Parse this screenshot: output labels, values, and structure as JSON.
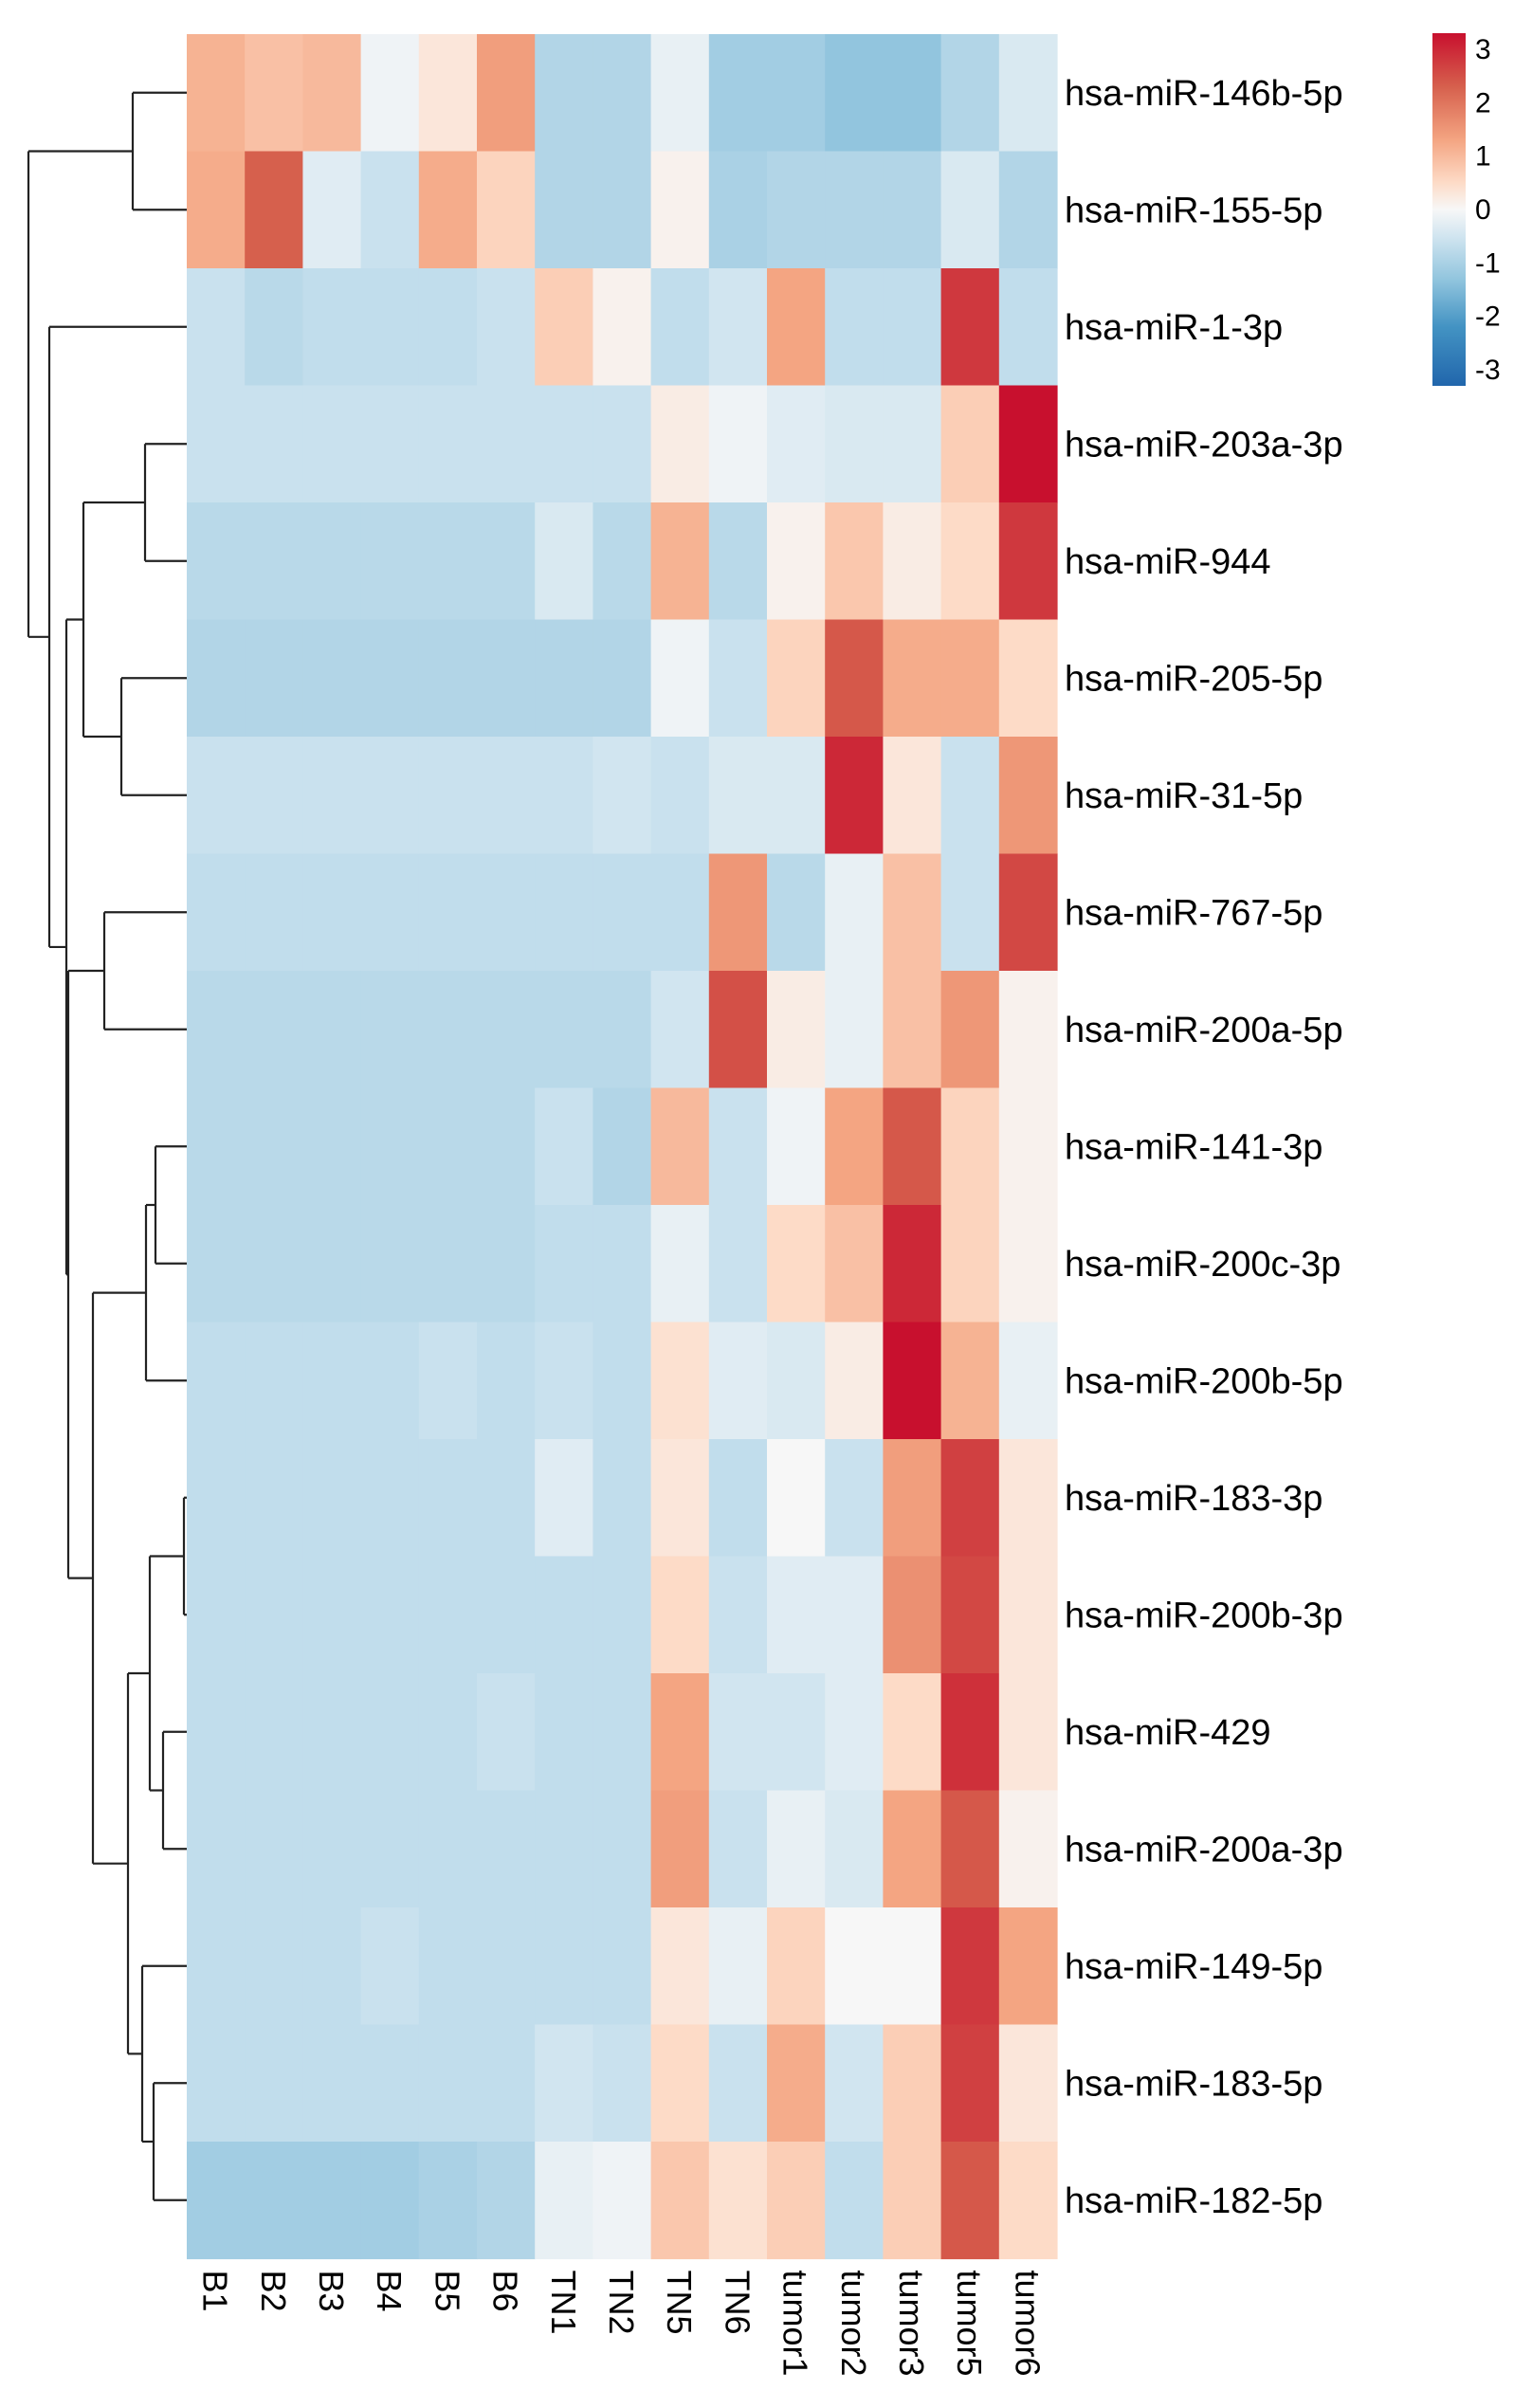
{
  "chart_data": {
    "type": "heatmap",
    "title": "",
    "columns": [
      "B1",
      "B2",
      "B3",
      "B4",
      "B5",
      "B6",
      "TN1",
      "TN2",
      "TN5",
      "TN6",
      "tumor1",
      "tumor2",
      "tumor3",
      "tumor5",
      "tumor6"
    ],
    "rows": [
      "hsa-miR-146b-5p",
      "hsa-miR-155-5p",
      "hsa-miR-1-3p",
      "hsa-miR-203a-3p",
      "hsa-miR-944",
      "hsa-miR-205-5p",
      "hsa-miR-31-5p",
      "hsa-miR-767-5p",
      "hsa-miR-200a-5p",
      "hsa-miR-141-3p",
      "hsa-miR-200c-3p",
      "hsa-miR-200b-5p",
      "hsa-miR-183-3p",
      "hsa-miR-200b-3p",
      "hsa-miR-429",
      "hsa-miR-200a-3p",
      "hsa-miR-149-5p",
      "hsa-miR-183-5p",
      "hsa-miR-182-5p"
    ],
    "values": [
      [
        1.1,
        0.9,
        1.0,
        -0.1,
        0.3,
        1.4,
        -0.9,
        -0.9,
        -0.2,
        -1.1,
        -1.1,
        -1.3,
        -1.3,
        -0.9,
        -0.4
      ],
      [
        1.2,
        2.3,
        -0.3,
        -0.6,
        1.2,
        0.6,
        -0.9,
        -0.9,
        0.1,
        -1.0,
        -0.9,
        -0.9,
        -0.9,
        -0.4,
        -0.9
      ],
      [
        -0.6,
        -0.8,
        -0.7,
        -0.7,
        -0.7,
        -0.6,
        0.7,
        0.1,
        -0.7,
        -0.5,
        1.3,
        -0.7,
        -0.7,
        2.8,
        -0.7
      ],
      [
        -0.6,
        -0.6,
        -0.6,
        -0.6,
        -0.6,
        -0.6,
        -0.6,
        -0.6,
        0.2,
        -0.1,
        -0.3,
        -0.4,
        -0.4,
        0.7,
        3.3
      ],
      [
        -0.8,
        -0.8,
        -0.8,
        -0.8,
        -0.8,
        -0.8,
        -0.4,
        -0.8,
        1.1,
        -0.8,
        0.1,
        0.8,
        0.2,
        0.5,
        2.8
      ],
      [
        -0.9,
        -0.9,
        -0.9,
        -0.9,
        -0.9,
        -0.9,
        -0.9,
        -0.9,
        -0.1,
        -0.6,
        0.6,
        2.4,
        1.2,
        1.2,
        0.5
      ],
      [
        -0.6,
        -0.6,
        -0.6,
        -0.6,
        -0.6,
        -0.6,
        -0.6,
        -0.5,
        -0.6,
        -0.4,
        -0.4,
        3.0,
        0.3,
        -0.6,
        1.5
      ],
      [
        -0.7,
        -0.7,
        -0.7,
        -0.7,
        -0.7,
        -0.7,
        -0.7,
        -0.7,
        -0.7,
        1.5,
        -0.8,
        -0.2,
        0.9,
        -0.6,
        2.6
      ],
      [
        -0.8,
        -0.8,
        -0.8,
        -0.8,
        -0.8,
        -0.8,
        -0.8,
        -0.8,
        -0.5,
        2.5,
        0.2,
        -0.2,
        0.9,
        1.5,
        0.1
      ],
      [
        -0.8,
        -0.8,
        -0.8,
        -0.8,
        -0.8,
        -0.8,
        -0.6,
        -0.9,
        1.0,
        -0.6,
        -0.1,
        1.3,
        2.4,
        0.6,
        0.1
      ],
      [
        -0.8,
        -0.8,
        -0.8,
        -0.8,
        -0.8,
        -0.8,
        -0.7,
        -0.7,
        -0.2,
        -0.6,
        0.5,
        0.9,
        3.0,
        0.6,
        0.1
      ],
      [
        -0.7,
        -0.7,
        -0.7,
        -0.7,
        -0.6,
        -0.7,
        -0.6,
        -0.7,
        0.4,
        -0.3,
        -0.4,
        0.2,
        3.3,
        1.1,
        -0.2
      ],
      [
        -0.7,
        -0.7,
        -0.7,
        -0.7,
        -0.7,
        -0.7,
        -0.3,
        -0.7,
        0.3,
        -0.7,
        0.0,
        -0.6,
        1.4,
        2.7,
        0.3
      ],
      [
        -0.7,
        -0.7,
        -0.7,
        -0.7,
        -0.7,
        -0.7,
        -0.7,
        -0.7,
        0.5,
        -0.6,
        -0.3,
        -0.3,
        1.6,
        2.6,
        0.3
      ],
      [
        -0.7,
        -0.7,
        -0.7,
        -0.7,
        -0.7,
        -0.6,
        -0.7,
        -0.7,
        1.3,
        -0.5,
        -0.5,
        -0.3,
        0.5,
        2.9,
        0.3
      ],
      [
        -0.7,
        -0.7,
        -0.7,
        -0.7,
        -0.7,
        -0.7,
        -0.7,
        -0.7,
        1.4,
        -0.6,
        -0.2,
        -0.4,
        1.3,
        2.4,
        0.1
      ],
      [
        -0.7,
        -0.7,
        -0.7,
        -0.6,
        -0.7,
        -0.7,
        -0.7,
        -0.7,
        0.3,
        -0.2,
        0.6,
        0.0,
        0.0,
        2.8,
        1.3
      ],
      [
        -0.7,
        -0.7,
        -0.7,
        -0.7,
        -0.7,
        -0.7,
        -0.5,
        -0.6,
        0.5,
        -0.6,
        1.2,
        -0.5,
        0.7,
        2.7,
        0.3
      ],
      [
        -1.1,
        -1.1,
        -1.1,
        -1.1,
        -1.0,
        -0.9,
        -0.2,
        -0.1,
        0.8,
        0.4,
        0.7,
        -0.7,
        0.7,
        2.4,
        0.5
      ]
    ],
    "colorbar": {
      "ticks": [
        3,
        2,
        1,
        0,
        -1,
        -2,
        -3
      ],
      "tick_labels": [
        "3",
        "2",
        "1",
        "0",
        "-1",
        "-2",
        "-3"
      ],
      "range": [
        -3.3,
        3.3
      ]
    },
    "colors": {
      "neg3": "#2166ac",
      "neg2": "#4393c3",
      "neg1": "#92c5de",
      "neg_light": "#d1e5f0",
      "zero": "#f7f7f7",
      "pos_light": "#fddbc7",
      "pos1": "#f4a582",
      "pos2": "#d6604d",
      "pos3": "#c8102e"
    },
    "row_dendrogram": "hierarchical clustering",
    "legend_position": "top-right"
  }
}
